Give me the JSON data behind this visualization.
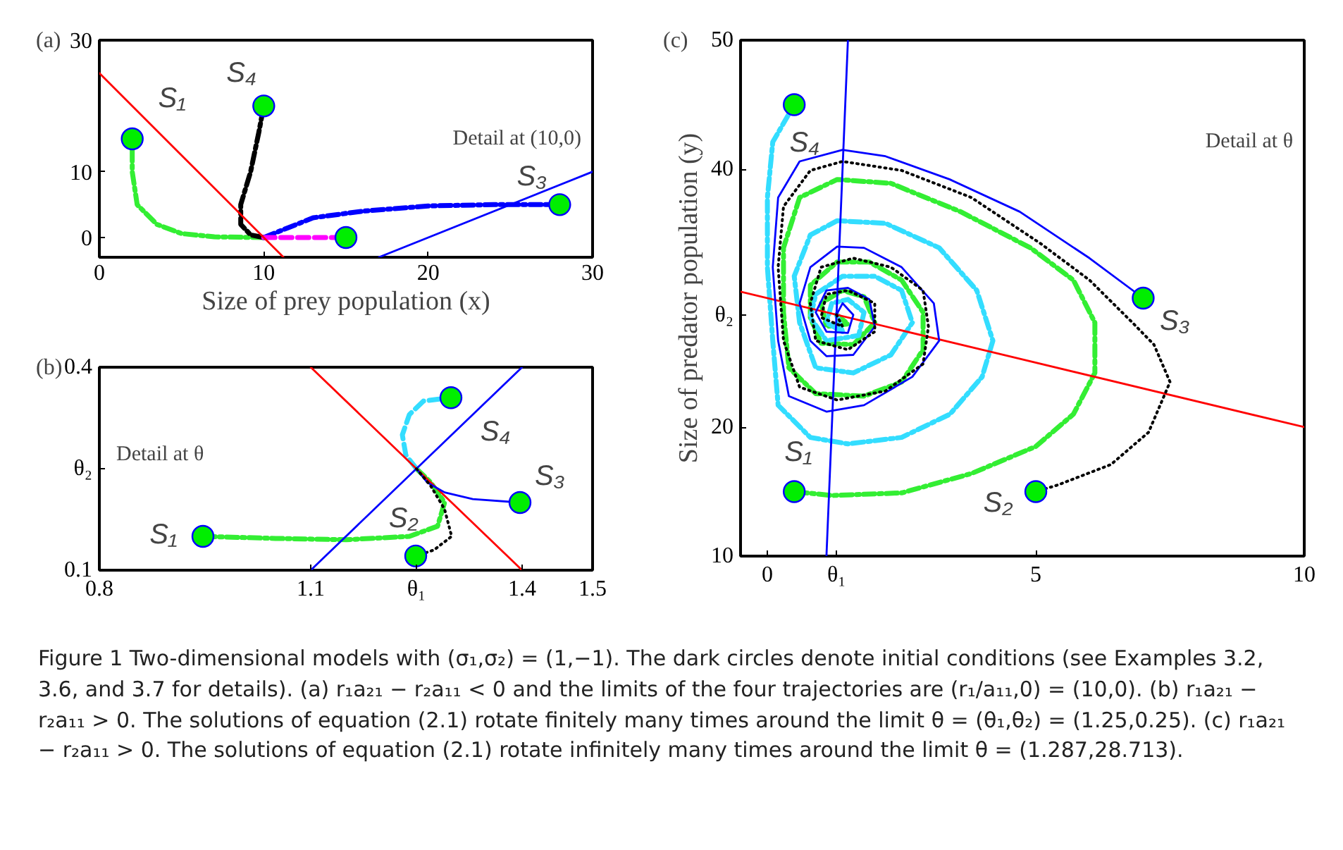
{
  "chart_data": [
    {
      "type": "line",
      "title": "(a)",
      "xlabel": "Size of prey population (x)",
      "xlim": [
        0,
        30
      ],
      "ylim": [
        -3,
        30
      ],
      "xticks": [
        0,
        10,
        20,
        30
      ],
      "yticks": [
        0,
        10,
        30
      ],
      "series": [
        {
          "color": "#ff0000",
          "line_style": "solid",
          "x": [
            0,
            11.2
          ],
          "values": [
            25,
            -3
          ]
        },
        {
          "color": "#0000ff",
          "line_style": "solid",
          "x": [
            17,
            30
          ],
          "values": [
            -3,
            10
          ]
        },
        {
          "name": "S₁",
          "color": "#33ee33",
          "line_style": "dashdot",
          "x": [
            2,
            2,
            2.3,
            3.5,
            5,
            7,
            10
          ],
          "values": [
            15,
            10,
            5,
            2,
            0.6,
            0.1,
            0
          ]
        },
        {
          "name": "S₄",
          "color": "#000000",
          "line_style": "dashdot",
          "x": [
            10,
            9.7,
            9.2,
            8.6,
            8.6,
            9.2,
            10
          ],
          "values": [
            20,
            16,
            10,
            5,
            2,
            0.4,
            0
          ]
        },
        {
          "name": "S₃",
          "color": "#0000ff",
          "line_style": "dashdot",
          "x": [
            28,
            24,
            20,
            16,
            13,
            11.5,
            10
          ],
          "values": [
            5,
            5,
            4.8,
            4,
            3,
            1.5,
            0
          ]
        },
        {
          "color": "#ff00ff",
          "line_style": "dashed",
          "x": [
            15,
            10
          ],
          "values": [
            0,
            0
          ]
        },
        {
          "type": "scatter",
          "marker": "circle",
          "color": "#00ee00",
          "x": [
            2,
            10,
            15,
            28
          ],
          "values": [
            15,
            20,
            0,
            5
          ]
        }
      ],
      "annotations": [
        "Detail at (10,0)"
      ]
    },
    {
      "type": "line",
      "title": "(b)",
      "xlim": [
        0.8,
        1.5
      ],
      "ylim": [
        0.1,
        0.4
      ],
      "xticks": [
        0.8,
        1.1,
        {
          "value": 1.25,
          "label": "θ₁"
        },
        1.4,
        1.5
      ],
      "yticks": [
        0.1,
        {
          "value": 0.25,
          "label": "θ₂"
        },
        0.4
      ],
      "series": [
        {
          "color": "#ff0000",
          "line_style": "solid",
          "x": [
            1.1,
            1.4
          ],
          "values": [
            0.4,
            0.1
          ]
        },
        {
          "color": "#0000ff",
          "line_style": "solid",
          "x": [
            1.1,
            1.4
          ],
          "values": [
            0.1,
            0.4
          ]
        },
        {
          "name": "S₁",
          "color": "#33ee33",
          "line_style": "dashdot",
          "x": [
            0.947,
            1.05,
            1.15,
            1.24,
            1.28,
            1.29,
            1.27,
            1.25
          ],
          "values": [
            0.15,
            0.147,
            0.145,
            0.15,
            0.165,
            0.2,
            0.23,
            0.25
          ]
        },
        {
          "name": "S₂",
          "color": "#000000",
          "line_style": "dotted",
          "x": [
            1.25,
            1.275,
            1.3,
            1.29,
            1.27,
            1.25
          ],
          "values": [
            0.121,
            0.13,
            0.15,
            0.19,
            0.225,
            0.25
          ]
        },
        {
          "name": "S₃",
          "color": "#0000ff",
          "line_style": "solid",
          "x": [
            1.397,
            1.33,
            1.29,
            1.265,
            1.25
          ],
          "values": [
            0.2,
            0.205,
            0.215,
            0.23,
            0.25
          ]
        },
        {
          "name": "S₄",
          "color": "#33ddff",
          "line_style": "dashed",
          "x": [
            1.299,
            1.26,
            1.24,
            1.23,
            1.235,
            1.25
          ],
          "values": [
            0.355,
            0.35,
            0.33,
            0.3,
            0.27,
            0.25
          ]
        },
        {
          "type": "scatter",
          "marker": "circle",
          "color": "#00ee00",
          "x": [
            0.947,
            1.249,
            1.397,
            1.299
          ],
          "values": [
            0.15,
            0.121,
            0.2,
            0.355
          ]
        }
      ],
      "annotations": [
        "Detail at θ"
      ]
    },
    {
      "type": "line",
      "title": "(c)",
      "ylabel": "Size of predator population (y)",
      "xlim": [
        -0.5,
        10
      ],
      "ylim": [
        10,
        50
      ],
      "xticks": [
        0,
        {
          "value": 1.287,
          "label": "θ₁"
        },
        5,
        10
      ],
      "yticks": [
        10,
        20,
        {
          "value": 28.713,
          "label": "θ₂"
        },
        40,
        50
      ],
      "series": [
        {
          "color": "#ff0000",
          "line_style": "solid",
          "x": [
            -0.5,
            10
          ],
          "values": [
            30.5,
            20
          ]
        },
        {
          "color": "#0000ff",
          "line_style": "solid",
          "x": [
            1.5,
            1.1
          ],
          "values": [
            50,
            10
          ]
        },
        {
          "name": "S₃",
          "color": "#0000ff",
          "line_style": "solid",
          "x": [
            7.0,
            6.0,
            4.7,
            3.4,
            2.2,
            1.4,
            0.6,
            0.2,
            0.1,
            0.2,
            0.4,
            1.1,
            1.8,
            2.7,
            3.2,
            3.1,
            2.5,
            1.8,
            1.3,
            0.8,
            0.6,
            0.8,
            1.1,
            1.6,
            2.0,
            1.9,
            1.5,
            1.1,
            0.9,
            1.1,
            1.5,
            1.6,
            1.4,
            1.287
          ],
          "values": [
            30.0,
            33.1,
            36.7,
            39.2,
            41.0,
            41.5,
            40.6,
            37.8,
            32.4,
            26.7,
            22.4,
            21.2,
            21.7,
            23.9,
            26.7,
            29.6,
            32.4,
            33.9,
            34.0,
            32.4,
            29.6,
            26.7,
            25.5,
            25.6,
            27.8,
            29.9,
            30.8,
            30.6,
            28.9,
            27.4,
            27.3,
            28.7,
            29.6,
            28.713
          ]
        },
        {
          "name": "S₂",
          "color": "#000000",
          "line_style": "dotted",
          "x": [
            5.0,
            5.4,
            6.4,
            7.1,
            7.5,
            7.2,
            6.8,
            6.0,
            5.1,
            3.8,
            2.5,
            1.4,
            0.8,
            0.3,
            0.2,
            0.3,
            0.6,
            1.3,
            2.2,
            2.9,
            3.0,
            2.9,
            2.3,
            1.6,
            1.0,
            0.8,
            0.9,
            1.5,
            2.0,
            2.0,
            1.5,
            1.1,
            1.0,
            1.4,
            1.287
          ],
          "values": [
            15.0,
            15.5,
            17.1,
            19.6,
            23.5,
            26.4,
            28.1,
            31.4,
            34.2,
            37.8,
            39.9,
            40.6,
            39.9,
            37.1,
            32.4,
            26.7,
            23.1,
            22.1,
            22.8,
            24.9,
            27.8,
            30.6,
            32.4,
            33.1,
            32.4,
            29.6,
            26.7,
            26.0,
            27.4,
            29.6,
            30.6,
            30.3,
            28.5,
            27.8,
            28.713
          ]
        },
        {
          "name": "S₁",
          "color": "#33ee33",
          "line_style": "dashdot",
          "x": [
            0.5,
            1.2,
            2.5,
            3.8,
            5.0,
            5.7,
            6.1,
            6.1,
            5.7,
            4.9,
            3.6,
            2.3,
            1.3,
            0.6,
            0.3,
            0.3,
            0.4,
            0.9,
            1.8,
            2.5,
            2.9,
            2.9,
            2.5,
            1.9,
            1.3,
            0.8,
            0.8,
            1.0,
            1.6,
            2.0,
            1.8,
            1.4,
            1.0,
            1.1,
            1.5,
            1.287
          ],
          "values": [
            15.0,
            14.7,
            14.9,
            16.4,
            18.5,
            21.0,
            24.2,
            28.1,
            31.4,
            33.9,
            36.7,
            38.9,
            39.2,
            37.8,
            33.9,
            28.9,
            24.6,
            22.6,
            22.4,
            23.5,
            26.0,
            28.9,
            31.4,
            32.8,
            32.8,
            31.0,
            28.5,
            26.5,
            26.4,
            28.1,
            30.1,
            30.6,
            29.6,
            27.8,
            28.0,
            28.713
          ]
        },
        {
          "name": "S₄",
          "color": "#33ddff",
          "line_style": "dashdot",
          "x": [
            0.5,
            0.1,
            0.0,
            0.0,
            0.1,
            0.2,
            0.8,
            1.5,
            2.5,
            3.4,
            4.0,
            4.2,
            3.9,
            3.2,
            2.2,
            1.3,
            0.8,
            0.5,
            0.6,
            0.9,
            1.6,
            2.3,
            2.7,
            2.5,
            2.0,
            1.4,
            0.9,
            0.8,
            1.1,
            1.7,
            1.8,
            1.5,
            1.2,
            1.1,
            1.4,
            1.287
          ],
          "values": [
            45.0,
            42.1,
            37.8,
            32.4,
            26.7,
            21.7,
            19.2,
            18.7,
            19.2,
            21.0,
            23.9,
            26.7,
            30.6,
            33.9,
            35.8,
            36.0,
            34.9,
            31.7,
            28.1,
            24.6,
            24.2,
            25.6,
            28.1,
            30.6,
            31.7,
            31.7,
            30.3,
            28.5,
            26.7,
            27.1,
            28.9,
            29.9,
            29.6,
            28.1,
            27.4,
            28.713
          ]
        },
        {
          "type": "scatter",
          "marker": "circle",
          "color": "#00ee00",
          "x": [
            0.5,
            7.0,
            0.5,
            5.0
          ],
          "values": [
            45,
            30.0,
            15,
            15
          ]
        }
      ],
      "annotations": [
        "Detail at θ"
      ]
    },
    {
      "type": "other",
      "annotations": [
        "Figure 1  Two-dimensional models with (σ₁,σ₂) = (1,−1). The dark circles denote initial conditions (see Examples 3.2, 3.6, and 3.7 for details). (a) r₁a₂₁ − r₂a₁₁ < 0 and the limits of the four trajectories are (r₁/a₁₁,0) = (10,0). (b) r₁a₂₁ − r₂a₁₁ > 0. The solutions of equation (2.1) rotate finitely many times around the limit θ = (θ₁,θ₂) = (1.25,0.25). (c) r₁a₂₁ − r₂a₁₁ > 0. The solutions of equation (2.1) rotate infinitely many times around the limit θ = (1.287,28.713)."
      ]
    }
  ]
}
